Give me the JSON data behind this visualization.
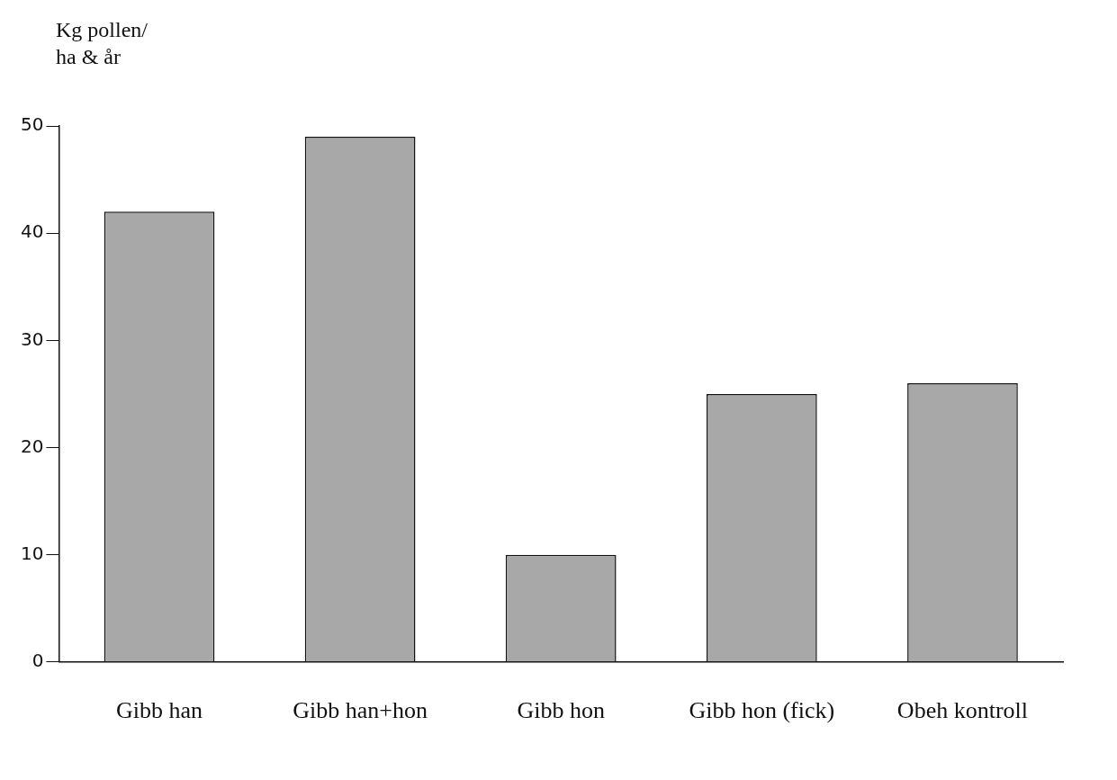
{
  "chart_data": {
    "type": "bar",
    "ylabel": "Kg pollen/\nha & år",
    "categories": [
      "Gibb han",
      "Gibb han+hon",
      "Gibb hon",
      "Gibb hon (fick)",
      "Obeh kontroll"
    ],
    "values": [
      42,
      49,
      10,
      25,
      26
    ],
    "color": "#a8a8a8",
    "ylim": [
      0,
      50
    ],
    "yticks": [
      0,
      10,
      20,
      30,
      40,
      50
    ],
    "grid": false,
    "legend": false
  }
}
